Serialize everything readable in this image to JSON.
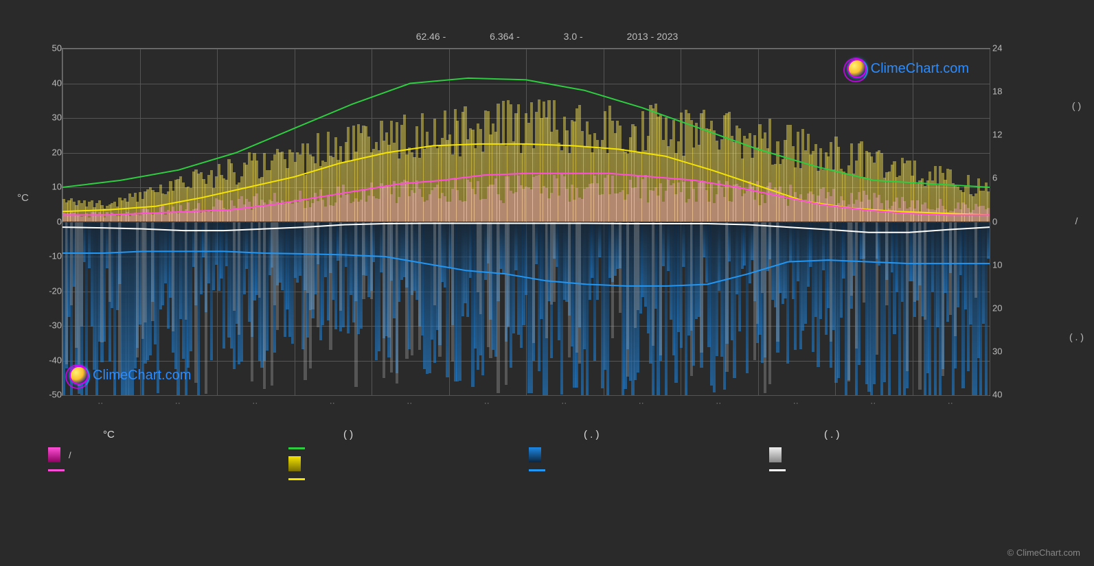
{
  "header": {
    "lat": "62.46 -",
    "lon": "6.364 -",
    "elev": "3.0 -",
    "years": "2013 - 2023"
  },
  "brand": "ClimeChart.com",
  "attribution": "© ClimeChart.com",
  "left_axis": {
    "unit": "°C",
    "min": -50,
    "max": 50,
    "ticks": [
      50,
      40,
      30,
      20,
      10,
      0,
      -10,
      -20,
      -30,
      -40,
      -50
    ]
  },
  "right_axis_top": {
    "ticks": [
      24,
      18,
      12,
      6,
      0
    ]
  },
  "right_axis_bottom": {
    "ticks": [
      0,
      10,
      20,
      30,
      40
    ]
  },
  "right_axis_labels": [
    "( )",
    "/",
    "( . )"
  ],
  "months_count": 12,
  "lines": {
    "green": {
      "color": "#2ecc40",
      "width": 2,
      "values_degC": [
        10,
        12,
        15,
        20,
        27,
        34,
        40,
        41.5,
        41,
        38,
        33,
        27,
        21,
        16,
        12,
        11,
        10
      ]
    },
    "yellow": {
      "color": "#f5e400",
      "width": 2,
      "values_degC": [
        3,
        3.5,
        4.5,
        7,
        10,
        13,
        17,
        20,
        22,
        22.5,
        22.5,
        22,
        21,
        19,
        15,
        10.5,
        6,
        4,
        3,
        2.5,
        2
      ]
    },
    "magenta": {
      "color": "#ff4fd8",
      "width": 2,
      "values_degC": [
        2,
        2,
        2.5,
        3,
        3.5,
        5,
        7,
        9,
        11,
        12,
        13.5,
        14,
        14,
        14,
        13,
        12,
        10,
        7.5,
        5,
        3.5,
        2.5,
        2,
        2
      ]
    },
    "white": {
      "color": "#ffffff",
      "width": 2,
      "values_degC": [
        -1.5,
        -1.7,
        -2,
        -2.5,
        -2.5,
        -2,
        -1.5,
        -0.8,
        -0.5,
        -0.4,
        -0.4,
        -0.4,
        -0.4,
        -0.4,
        -0.5,
        -0.5,
        -0.5,
        -0.8,
        -1.5,
        -2.2,
        -3,
        -3,
        -2.2,
        -1.5
      ]
    },
    "blue": {
      "color": "#2196f3",
      "width": 2,
      "values_degC": [
        -9,
        -9,
        -8.5,
        -8.5,
        -8.5,
        -9,
        -9.2,
        -9.5,
        -10,
        -12,
        -14,
        -15,
        -17,
        -18,
        -18.5,
        -18.5,
        -18,
        -15,
        -11.5,
        -11,
        -11.5,
        -12,
        -12,
        -12
      ]
    }
  },
  "bars": {
    "sun_color_top": "#ffee58",
    "sun_color_base": "#fdd835",
    "pink_color": "#ff4fd8",
    "rain_color_top": "#0a2540",
    "rain_color_bottom": "#1e88e5",
    "cloud_color": "#aaaaaa",
    "count": 365,
    "sun_peak_amplitude_degC": 36,
    "sun_low_amplitude_degC": 7,
    "pink_peak_amplitude_degC": 14,
    "pink_low_amplitude_degC": 3,
    "rain_max_depth_degC": 50,
    "grey_opacity": 0.35
  },
  "legend": {
    "headers": [
      "°C",
      "( )",
      "( . )",
      "( . )"
    ],
    "col1": [
      {
        "type": "box",
        "color1": "#ff4fd8",
        "color2": "#8e0060",
        "label": "/"
      },
      {
        "type": "line",
        "color": "#ff4fd8",
        "label": ""
      }
    ],
    "col2": [
      {
        "type": "line",
        "color": "#2ecc40",
        "label": ""
      },
      {
        "type": "box",
        "color1": "#f5e400",
        "color2": "#7a7000",
        "label": ""
      },
      {
        "type": "line",
        "color": "#f5e400",
        "label": ""
      }
    ],
    "col3": [
      {
        "type": "box",
        "color1": "#1e88e5",
        "color2": "#0a2540",
        "label": ""
      },
      {
        "type": "line",
        "color": "#2196f3",
        "label": ""
      }
    ],
    "col4": [
      {
        "type": "box",
        "color1": "#eeeeee",
        "color2": "#888888",
        "label": ""
      },
      {
        "type": "line",
        "color": "#ffffff",
        "label": ""
      }
    ]
  },
  "colors": {
    "bg": "#2a2a2a",
    "grid": "#555555",
    "border": "#777777",
    "text": "#bbbbbb"
  }
}
